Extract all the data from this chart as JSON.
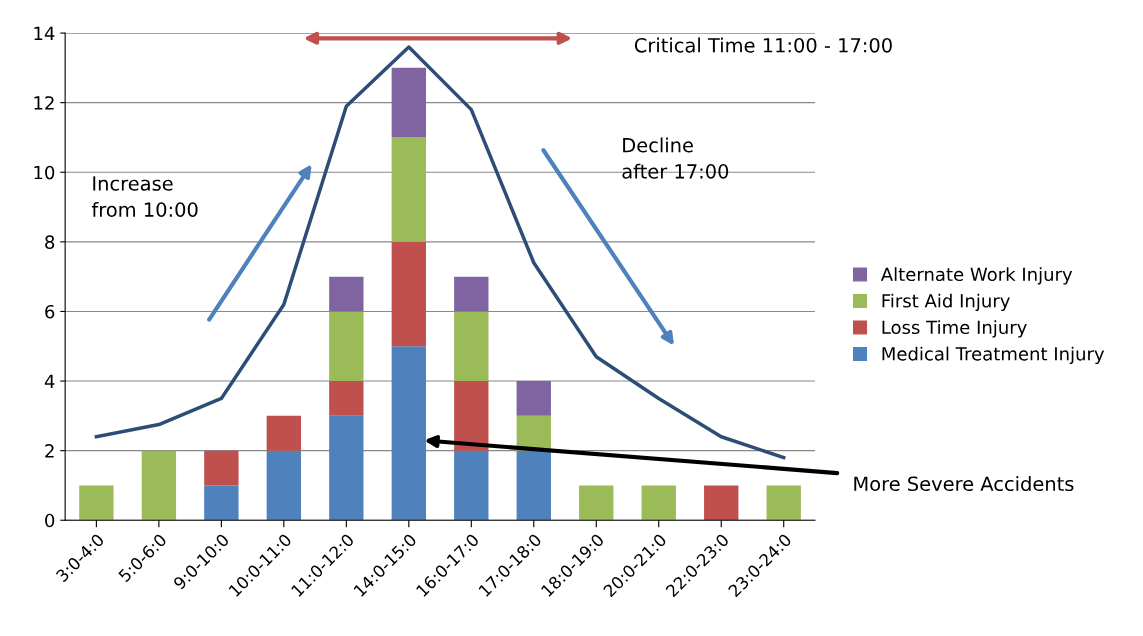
{
  "chart_data": {
    "type": "bar",
    "stacked": true,
    "categories": [
      "3:0-4:0",
      "5:0-6:0",
      "9:0-10:0",
      "10:0-11:0",
      "11:0-12:0",
      "14:0-15:0",
      "16:0-17:0",
      "17:0-18:0",
      "18:0-19:0",
      "20:0-21:0",
      "22:0-23:0",
      "23:0-24:0"
    ],
    "series": [
      {
        "name": "Medical Treatment Injury",
        "color": "#4f81bd",
        "values": [
          0,
          0,
          1,
          2,
          3,
          5,
          2,
          2,
          0,
          0,
          0,
          0
        ]
      },
      {
        "name": "Loss Time Injury",
        "color": "#c0504d",
        "values": [
          0,
          0,
          1,
          1,
          1,
          3,
          2,
          0,
          0,
          0,
          1,
          0
        ]
      },
      {
        "name": "First Aid Injury",
        "color": "#9bbb59",
        "values": [
          1,
          2,
          0,
          0,
          2,
          3,
          2,
          1,
          1,
          1,
          0,
          1
        ]
      },
      {
        "name": "Alternate Work Injury",
        "color": "#8064a2",
        "values": [
          0,
          0,
          0,
          0,
          1,
          2,
          1,
          1,
          0,
          0,
          0,
          0
        ]
      },
      {
        "type": "line",
        "color": "#2c4d75",
        "values": [
          2.4,
          2.75,
          3.5,
          6.2,
          11.9,
          13.6,
          11.8,
          7.4,
          4.7,
          3.5,
          2.4,
          1.8
        ]
      }
    ],
    "ylim": [
      0,
      14
    ],
    "yticks": [
      0,
      2,
      4,
      6,
      8,
      10,
      12,
      14
    ],
    "grid": "y",
    "legend": "right",
    "annotations": [
      "Critical Time 11:00 - 17:00",
      "Increase\nfrom 10:00",
      "Decline\nafter 17:00",
      "More Severe Accidents"
    ]
  }
}
